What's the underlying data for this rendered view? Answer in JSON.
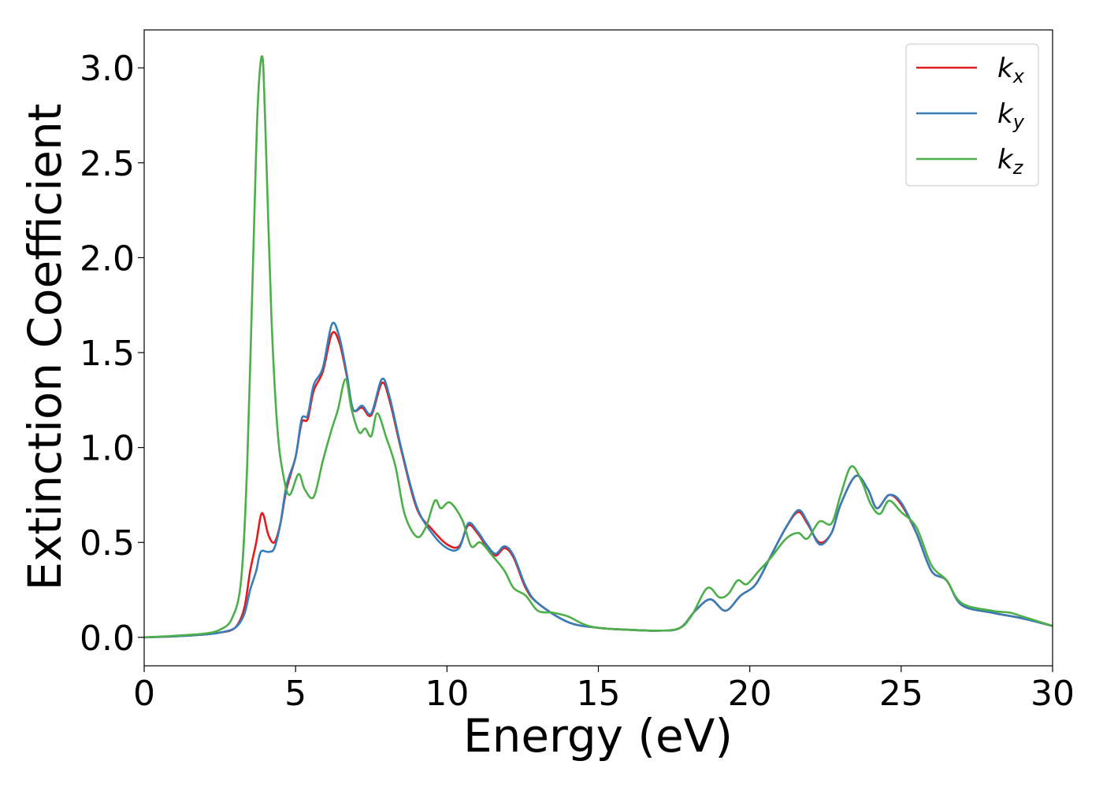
{
  "chart_data": {
    "type": "line",
    "title": "",
    "xlabel": "Energy (eV)",
    "ylabel": "Extinction Coefficient",
    "xlim": [
      0,
      30
    ],
    "ylim": [
      -0.15,
      3.2
    ],
    "xticks": [
      "0",
      "5",
      "10",
      "15",
      "20",
      "25",
      "30"
    ],
    "yticks": [
      "0.0",
      "0.5",
      "1.0",
      "1.5",
      "2.0",
      "2.5",
      "3.0"
    ],
    "grid": false,
    "legend_position": "top-right",
    "series": [
      {
        "name": "k",
        "subscript": "x",
        "color": "#e41a1c",
        "points": [
          [
            0,
            0.0
          ],
          [
            1,
            0.005
          ],
          [
            2,
            0.015
          ],
          [
            2.5,
            0.025
          ],
          [
            3,
            0.05
          ],
          [
            3.3,
            0.15
          ],
          [
            3.5,
            0.35
          ],
          [
            3.7,
            0.5
          ],
          [
            3.85,
            0.64
          ],
          [
            3.95,
            0.64
          ],
          [
            4.1,
            0.54
          ],
          [
            4.3,
            0.5
          ],
          [
            4.5,
            0.6
          ],
          [
            4.7,
            0.78
          ],
          [
            5.0,
            0.95
          ],
          [
            5.2,
            1.13
          ],
          [
            5.4,
            1.15
          ],
          [
            5.6,
            1.3
          ],
          [
            5.9,
            1.4
          ],
          [
            6.2,
            1.6
          ],
          [
            6.45,
            1.55
          ],
          [
            6.7,
            1.37
          ],
          [
            6.9,
            1.2
          ],
          [
            7.2,
            1.21
          ],
          [
            7.5,
            1.17
          ],
          [
            7.85,
            1.34
          ],
          [
            8.1,
            1.25
          ],
          [
            8.5,
            0.98
          ],
          [
            9.0,
            0.68
          ],
          [
            9.5,
            0.57
          ],
          [
            10.0,
            0.49
          ],
          [
            10.4,
            0.48
          ],
          [
            10.7,
            0.59
          ],
          [
            11.0,
            0.55
          ],
          [
            11.3,
            0.48
          ],
          [
            11.6,
            0.43
          ],
          [
            11.9,
            0.47
          ],
          [
            12.2,
            0.42
          ],
          [
            12.6,
            0.26
          ],
          [
            13.0,
            0.18
          ],
          [
            14.0,
            0.08
          ],
          [
            15.0,
            0.05
          ],
          [
            16.0,
            0.04
          ],
          [
            17.0,
            0.035
          ],
          [
            17.7,
            0.05
          ],
          [
            18.2,
            0.14
          ],
          [
            18.7,
            0.2
          ],
          [
            19.2,
            0.14
          ],
          [
            19.7,
            0.22
          ],
          [
            20.2,
            0.28
          ],
          [
            20.7,
            0.43
          ],
          [
            21.2,
            0.58
          ],
          [
            21.6,
            0.66
          ],
          [
            21.9,
            0.6
          ],
          [
            22.3,
            0.5
          ],
          [
            22.7,
            0.55
          ],
          [
            23.0,
            0.7
          ],
          [
            23.5,
            0.85
          ],
          [
            23.9,
            0.78
          ],
          [
            24.2,
            0.68
          ],
          [
            24.6,
            0.75
          ],
          [
            25.0,
            0.7
          ],
          [
            25.5,
            0.55
          ],
          [
            26.0,
            0.35
          ],
          [
            26.5,
            0.3
          ],
          [
            27.0,
            0.17
          ],
          [
            28.0,
            0.13
          ],
          [
            29.0,
            0.1
          ],
          [
            30.0,
            0.06
          ]
        ]
      },
      {
        "name": "k",
        "subscript": "y",
        "color": "#377eb8",
        "points": [
          [
            0,
            0.0
          ],
          [
            1,
            0.005
          ],
          [
            2,
            0.015
          ],
          [
            2.5,
            0.025
          ],
          [
            3,
            0.05
          ],
          [
            3.3,
            0.12
          ],
          [
            3.5,
            0.25
          ],
          [
            3.7,
            0.35
          ],
          [
            3.85,
            0.45
          ],
          [
            4.1,
            0.45
          ],
          [
            4.3,
            0.47
          ],
          [
            4.5,
            0.6
          ],
          [
            4.7,
            0.8
          ],
          [
            5.0,
            0.95
          ],
          [
            5.2,
            1.15
          ],
          [
            5.4,
            1.17
          ],
          [
            5.6,
            1.33
          ],
          [
            5.9,
            1.42
          ],
          [
            6.2,
            1.65
          ],
          [
            6.45,
            1.58
          ],
          [
            6.7,
            1.38
          ],
          [
            6.9,
            1.2
          ],
          [
            7.2,
            1.22
          ],
          [
            7.5,
            1.18
          ],
          [
            7.85,
            1.36
          ],
          [
            8.1,
            1.27
          ],
          [
            8.5,
            0.99
          ],
          [
            9.0,
            0.69
          ],
          [
            9.5,
            0.55
          ],
          [
            10.0,
            0.47
          ],
          [
            10.4,
            0.47
          ],
          [
            10.7,
            0.6
          ],
          [
            11.0,
            0.56
          ],
          [
            11.3,
            0.49
          ],
          [
            11.6,
            0.44
          ],
          [
            11.9,
            0.48
          ],
          [
            12.2,
            0.43
          ],
          [
            12.6,
            0.27
          ],
          [
            13.0,
            0.18
          ],
          [
            14.0,
            0.08
          ],
          [
            15.0,
            0.05
          ],
          [
            16.0,
            0.04
          ],
          [
            17.0,
            0.035
          ],
          [
            17.7,
            0.05
          ],
          [
            18.2,
            0.14
          ],
          [
            18.7,
            0.2
          ],
          [
            19.2,
            0.14
          ],
          [
            19.7,
            0.22
          ],
          [
            20.2,
            0.28
          ],
          [
            20.7,
            0.43
          ],
          [
            21.2,
            0.58
          ],
          [
            21.6,
            0.67
          ],
          [
            21.9,
            0.61
          ],
          [
            22.3,
            0.49
          ],
          [
            22.7,
            0.55
          ],
          [
            23.0,
            0.7
          ],
          [
            23.5,
            0.85
          ],
          [
            23.9,
            0.78
          ],
          [
            24.2,
            0.68
          ],
          [
            24.6,
            0.75
          ],
          [
            25.0,
            0.71
          ],
          [
            25.5,
            0.55
          ],
          [
            26.0,
            0.35
          ],
          [
            26.5,
            0.3
          ],
          [
            27.0,
            0.17
          ],
          [
            28.0,
            0.13
          ],
          [
            29.0,
            0.1
          ],
          [
            30.0,
            0.06
          ]
        ]
      },
      {
        "name": "k",
        "subscript": "z",
        "color": "#4daf4a",
        "points": [
          [
            0,
            0.0
          ],
          [
            1,
            0.008
          ],
          [
            2,
            0.02
          ],
          [
            2.5,
            0.04
          ],
          [
            2.9,
            0.1
          ],
          [
            3.2,
            0.3
          ],
          [
            3.4,
            0.9
          ],
          [
            3.6,
            2.0
          ],
          [
            3.75,
            2.8
          ],
          [
            3.9,
            3.06
          ],
          [
            4.0,
            2.7
          ],
          [
            4.2,
            1.7
          ],
          [
            4.4,
            1.1
          ],
          [
            4.6,
            0.85
          ],
          [
            4.8,
            0.75
          ],
          [
            5.1,
            0.86
          ],
          [
            5.3,
            0.78
          ],
          [
            5.6,
            0.74
          ],
          [
            5.9,
            0.93
          ],
          [
            6.2,
            1.1
          ],
          [
            6.4,
            1.2
          ],
          [
            6.65,
            1.36
          ],
          [
            6.85,
            1.2
          ],
          [
            7.1,
            1.08
          ],
          [
            7.3,
            1.1
          ],
          [
            7.5,
            1.06
          ],
          [
            7.7,
            1.18
          ],
          [
            8.0,
            1.05
          ],
          [
            8.3,
            0.9
          ],
          [
            8.6,
            0.65
          ],
          [
            9.0,
            0.53
          ],
          [
            9.3,
            0.58
          ],
          [
            9.6,
            0.72
          ],
          [
            9.8,
            0.68
          ],
          [
            10.1,
            0.71
          ],
          [
            10.5,
            0.62
          ],
          [
            10.8,
            0.48
          ],
          [
            11.1,
            0.5
          ],
          [
            11.5,
            0.43
          ],
          [
            11.9,
            0.35
          ],
          [
            12.2,
            0.26
          ],
          [
            12.6,
            0.22
          ],
          [
            13.0,
            0.14
          ],
          [
            13.5,
            0.13
          ],
          [
            14.0,
            0.11
          ],
          [
            14.5,
            0.07
          ],
          [
            15.0,
            0.05
          ],
          [
            16.0,
            0.04
          ],
          [
            17.0,
            0.035
          ],
          [
            17.7,
            0.05
          ],
          [
            18.1,
            0.12
          ],
          [
            18.6,
            0.26
          ],
          [
            19.0,
            0.21
          ],
          [
            19.3,
            0.23
          ],
          [
            19.6,
            0.3
          ],
          [
            19.9,
            0.28
          ],
          [
            20.3,
            0.35
          ],
          [
            20.7,
            0.42
          ],
          [
            21.2,
            0.52
          ],
          [
            21.6,
            0.55
          ],
          [
            21.9,
            0.52
          ],
          [
            22.3,
            0.61
          ],
          [
            22.7,
            0.6
          ],
          [
            23.0,
            0.75
          ],
          [
            23.35,
            0.9
          ],
          [
            23.7,
            0.82
          ],
          [
            24.0,
            0.7
          ],
          [
            24.3,
            0.65
          ],
          [
            24.6,
            0.72
          ],
          [
            25.0,
            0.66
          ],
          [
            25.5,
            0.58
          ],
          [
            26.0,
            0.38
          ],
          [
            26.5,
            0.3
          ],
          [
            27.0,
            0.18
          ],
          [
            28.0,
            0.14
          ],
          [
            28.6,
            0.13
          ],
          [
            29.0,
            0.11
          ],
          [
            30.0,
            0.06
          ]
        ]
      }
    ]
  }
}
